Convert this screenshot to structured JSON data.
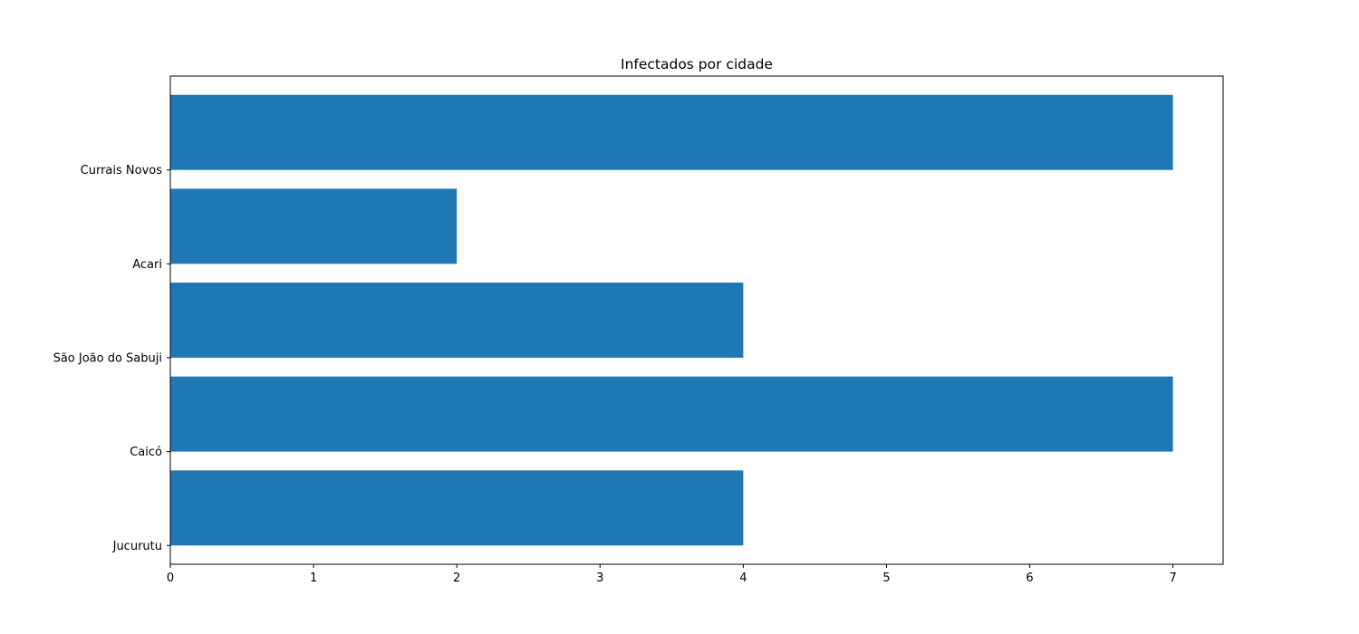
{
  "chart_data": {
    "type": "bar",
    "orientation": "horizontal",
    "title": "Infectados por cidade",
    "xlabel": "",
    "ylabel": "",
    "categories": [
      "Jucurutu",
      "Caicó",
      "São João do Sabuji",
      "Acari",
      "Currais Novos"
    ],
    "values": [
      4,
      7,
      4,
      2,
      7
    ],
    "xlim": [
      0,
      7.35
    ],
    "xticks": [
      0,
      1,
      2,
      3,
      4,
      5,
      6,
      7
    ],
    "grid": false,
    "legend": "none",
    "colors": {
      "bar": "#1f77b4",
      "axis": "#000000",
      "background": "#ffffff"
    }
  }
}
